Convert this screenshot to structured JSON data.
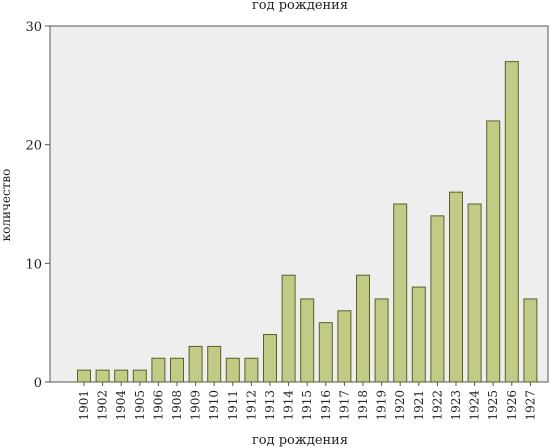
{
  "chart_data": {
    "type": "bar",
    "title": "год рождения",
    "xlabel": "год рождения",
    "ylabel": "количество",
    "categories": [
      "1901",
      "1902",
      "1904",
      "1905",
      "1906",
      "1908",
      "1909",
      "1910",
      "1911",
      "1912",
      "1913",
      "1914",
      "1915",
      "1916",
      "1917",
      "1918",
      "1919",
      "1920",
      "1921",
      "1922",
      "1923",
      "1924",
      "1925",
      "1926",
      "1927"
    ],
    "values": [
      1,
      1,
      1,
      1,
      2,
      2,
      3,
      3,
      2,
      2,
      4,
      9,
      7,
      5,
      6,
      9,
      7,
      15,
      8,
      14,
      16,
      15,
      22,
      27,
      7
    ],
    "ylim": [
      0,
      30
    ],
    "yticks": [
      0,
      10,
      20,
      30
    ],
    "grid": false,
    "legend": "none",
    "colors": {
      "plot_background": "#eeeeee",
      "bar_fill": "#c3ca85",
      "bar_stroke": "#5a5f2a",
      "frame": "#555555"
    }
  }
}
